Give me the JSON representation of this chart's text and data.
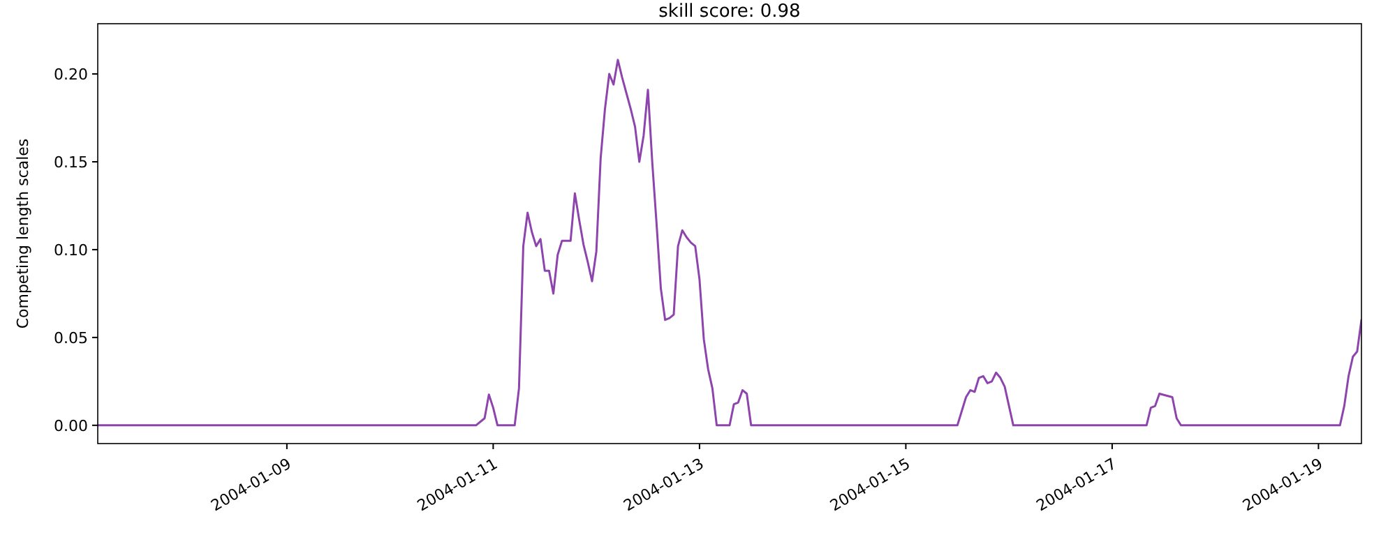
{
  "chart_data": {
    "type": "line",
    "title": "skill score: 0.98",
    "ylabel": "Competing length scales",
    "xlim": [
      "2004-01-07T04:00",
      "2004-01-19T10:00"
    ],
    "xticks": [
      {
        "value": "2004-01-09",
        "label": "2004-01-09"
      },
      {
        "value": "2004-01-11",
        "label": "2004-01-11"
      },
      {
        "value": "2004-01-13",
        "label": "2004-01-13"
      },
      {
        "value": "2004-01-15",
        "label": "2004-01-15"
      },
      {
        "value": "2004-01-17",
        "label": "2004-01-17"
      },
      {
        "value": "2004-01-19",
        "label": "2004-01-19"
      }
    ],
    "ylim": [
      -0.0104,
      0.2286
    ],
    "yticks": [
      {
        "value": 0,
        "label": "0.00"
      },
      {
        "value": 0.05,
        "label": "0.05"
      },
      {
        "value": 0.1,
        "label": "0.10"
      },
      {
        "value": 0.15,
        "label": "0.15"
      },
      {
        "value": 0.2,
        "label": "0.20"
      }
    ],
    "grid": false,
    "marker": "none",
    "line_style": "solid",
    "series": [
      {
        "color": "#8e44ad",
        "x": [
          "2004-01-07T04:00",
          "2004-01-10T20:00",
          "2004-01-10T22:00",
          "2004-01-10T23:00",
          "2004-01-11T00:00",
          "2004-01-11T01:00",
          "2004-01-11T05:00",
          "2004-01-11T06:00",
          "2004-01-11T07:00",
          "2004-01-11T08:00",
          "2004-01-11T09:00",
          "2004-01-11T10:00",
          "2004-01-11T11:00",
          "2004-01-11T12:00",
          "2004-01-11T13:00",
          "2004-01-11T14:00",
          "2004-01-11T15:00",
          "2004-01-11T16:00",
          "2004-01-11T17:00",
          "2004-01-11T18:00",
          "2004-01-11T19:00",
          "2004-01-11T20:00",
          "2004-01-11T21:00",
          "2004-01-11T22:00",
          "2004-01-11T23:00",
          "2004-01-12T00:00",
          "2004-01-12T01:00",
          "2004-01-12T02:00",
          "2004-01-12T03:00",
          "2004-01-12T04:00",
          "2004-01-12T05:00",
          "2004-01-12T06:00",
          "2004-01-12T07:00",
          "2004-01-12T08:00",
          "2004-01-12T09:00",
          "2004-01-12T10:00",
          "2004-01-12T11:00",
          "2004-01-12T12:00",
          "2004-01-12T13:00",
          "2004-01-12T14:00",
          "2004-01-12T15:00",
          "2004-01-12T16:00",
          "2004-01-12T17:00",
          "2004-01-12T18:00",
          "2004-01-12T19:00",
          "2004-01-12T20:00",
          "2004-01-12T21:00",
          "2004-01-12T22:00",
          "2004-01-12T23:00",
          "2004-01-13T00:00",
          "2004-01-13T01:00",
          "2004-01-13T02:00",
          "2004-01-13T03:00",
          "2004-01-13T04:00",
          "2004-01-13T07:00",
          "2004-01-13T08:00",
          "2004-01-13T09:00",
          "2004-01-13T10:00",
          "2004-01-13T11:00",
          "2004-01-13T12:00",
          "2004-01-15T12:00",
          "2004-01-15T14:00",
          "2004-01-15T15:00",
          "2004-01-15T16:00",
          "2004-01-15T17:00",
          "2004-01-15T18:00",
          "2004-01-15T19:00",
          "2004-01-15T20:00",
          "2004-01-15T21:00",
          "2004-01-15T22:00",
          "2004-01-15T23:00",
          "2004-01-16T01:00",
          "2004-01-17T08:00",
          "2004-01-17T09:00",
          "2004-01-17T10:00",
          "2004-01-17T11:00",
          "2004-01-17T14:00",
          "2004-01-17T15:00",
          "2004-01-17T16:00",
          "2004-01-19T05:00",
          "2004-01-19T06:00",
          "2004-01-19T07:00",
          "2004-01-19T08:00",
          "2004-01-19T09:00",
          "2004-01-19T10:00"
        ],
        "values": [
          0,
          0,
          0.004,
          0.0175,
          0.01,
          0,
          0,
          0.021,
          0.102,
          0.121,
          0.11,
          0.102,
          0.106,
          0.088,
          0.088,
          0.075,
          0.097,
          0.105,
          0.105,
          0.105,
          0.132,
          0.117,
          0.103,
          0.093,
          0.082,
          0.099,
          0.152,
          0.18,
          0.2,
          0.194,
          0.208,
          0.198,
          0.189,
          0.18,
          0.17,
          0.15,
          0.165,
          0.191,
          0.15,
          0.115,
          0.078,
          0.06,
          0.061,
          0.063,
          0.102,
          0.111,
          0.107,
          0.104,
          0.102,
          0.083,
          0.049,
          0.032,
          0.021,
          0,
          0,
          0.012,
          0.013,
          0.02,
          0.018,
          0,
          0,
          0.016,
          0.02,
          0.019,
          0.027,
          0.028,
          0.024,
          0.025,
          0.03,
          0.027,
          0.022,
          0,
          0,
          0.01,
          0.011,
          0.018,
          0.016,
          0.004,
          0,
          0,
          0.011,
          0.028,
          0.039,
          0.042,
          0.06
        ]
      }
    ]
  }
}
